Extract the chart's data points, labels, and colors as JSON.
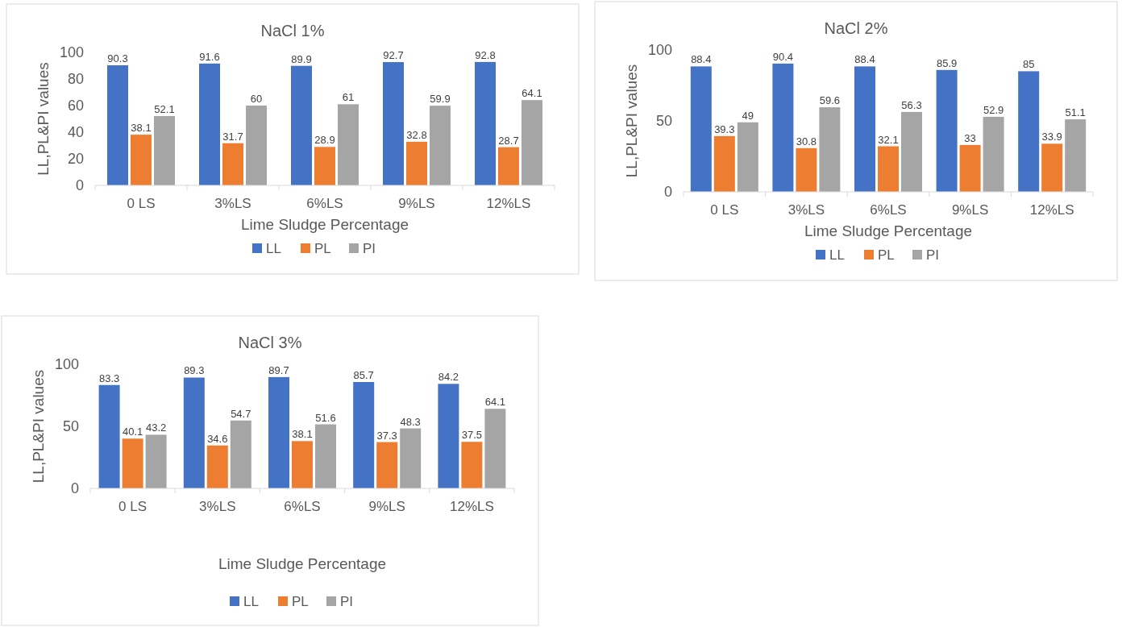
{
  "chart_data": [
    {
      "type": "bar",
      "title": "NaCl 1%",
      "xlabel": "Lime Sludge Percentage",
      "ylabel": "LL,PL&PI values",
      "categories": [
        "0 LS",
        "3%LS",
        "6%LS",
        "9%LS",
        "12%LS"
      ],
      "series": [
        {
          "name": "LL",
          "color": "#4472c4",
          "values": [
            90.3,
            91.6,
            89.9,
            92.7,
            92.8
          ]
        },
        {
          "name": "PL",
          "color": "#ed7d31",
          "values": [
            38.1,
            31.7,
            28.9,
            32.8,
            28.7
          ]
        },
        {
          "name": "PI",
          "color": "#a5a5a5",
          "values": [
            52.1,
            60,
            61,
            59.9,
            64.1
          ]
        }
      ],
      "ylim": [
        0,
        100
      ],
      "yticks": [
        0,
        20,
        40,
        60,
        80,
        100
      ],
      "data_labels": true,
      "legend": "bottom"
    },
    {
      "type": "bar",
      "title": "NaCl 2%",
      "xlabel": "Lime Sludge Percentage",
      "ylabel": "LL,PL&PI values",
      "categories": [
        "0 LS",
        "3%LS",
        "6%LS",
        "9%LS",
        "12%LS"
      ],
      "series": [
        {
          "name": "LL",
          "color": "#4472c4",
          "values": [
            88.4,
            90.4,
            88.4,
            85.9,
            85
          ]
        },
        {
          "name": "PL",
          "color": "#ed7d31",
          "values": [
            39.3,
            30.8,
            32.1,
            33,
            33.9
          ]
        },
        {
          "name": "PI",
          "color": "#a5a5a5",
          "values": [
            49,
            59.6,
            56.3,
            52.9,
            51.1
          ]
        }
      ],
      "ylim": [
        0,
        100
      ],
      "yticks": [
        0,
        50,
        100
      ],
      "data_labels": true,
      "legend": "bottom"
    },
    {
      "type": "bar",
      "title": "NaCl 3%",
      "xlabel": "Lime Sludge Percentage",
      "ylabel": "LL,PL&PI values",
      "categories": [
        "0 LS",
        "3%LS",
        "6%LS",
        "9%LS",
        "12%LS"
      ],
      "series": [
        {
          "name": "LL",
          "color": "#4472c4",
          "values": [
            83.3,
            89.3,
            89.7,
            85.7,
            84.2
          ]
        },
        {
          "name": "PL",
          "color": "#ed7d31",
          "values": [
            40.1,
            34.6,
            38.1,
            37.3,
            37.5
          ]
        },
        {
          "name": "PI",
          "color": "#a5a5a5",
          "values": [
            43.2,
            54.7,
            51.6,
            48.3,
            64.1
          ]
        }
      ],
      "ylim": [
        0,
        100
      ],
      "yticks": [
        0,
        50,
        100
      ],
      "data_labels": true,
      "legend": "bottom"
    }
  ]
}
